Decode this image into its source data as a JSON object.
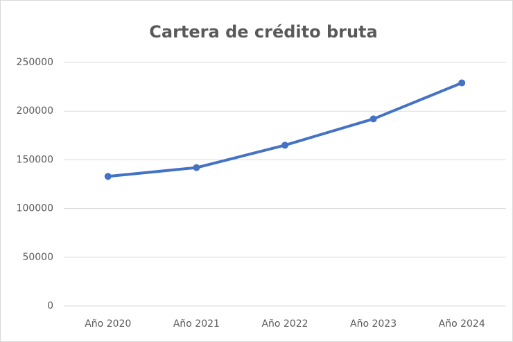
{
  "chart_data": {
    "type": "line",
    "title": "Cartera de crédito bruta",
    "categories": [
      "Año 2020",
      "Año 2021",
      "Año 2022",
      "Año 2023",
      "Año 2024"
    ],
    "values": [
      133000,
      142000,
      165000,
      192000,
      229000
    ],
    "color": "#4472c4",
    "ylim": [
      0,
      250000
    ],
    "yticks": [
      0,
      50000,
      100000,
      150000,
      200000,
      250000
    ],
    "grid": true
  }
}
